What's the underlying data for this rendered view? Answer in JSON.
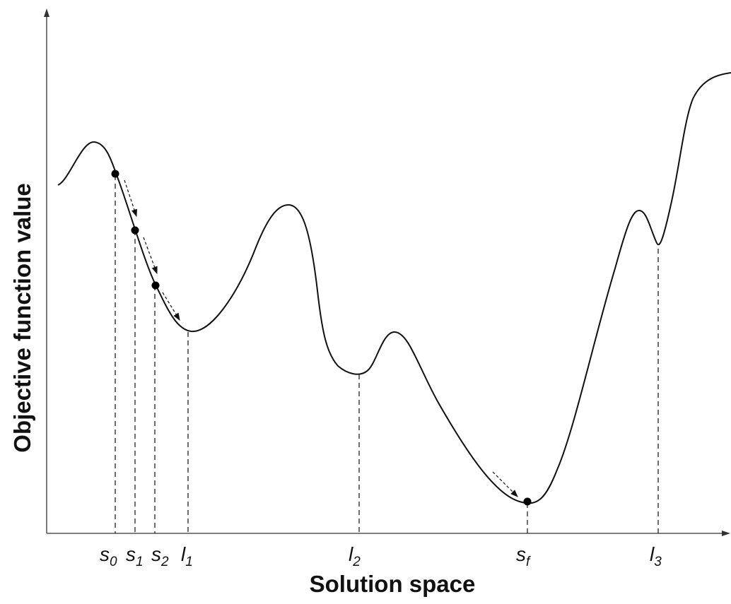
{
  "figure": {
    "y_axis_title": "Objective function value",
    "x_axis_title": "Solution space",
    "points": [
      {
        "id": "s0",
        "base": "s",
        "sub": "0"
      },
      {
        "id": "s1",
        "base": "s",
        "sub": "1"
      },
      {
        "id": "s2",
        "base": "s",
        "sub": "2"
      },
      {
        "id": "l1",
        "base": "l",
        "sub": "1"
      },
      {
        "id": "l2",
        "base": "l",
        "sub": "2"
      },
      {
        "id": "sf",
        "base": "s",
        "sub": "f"
      },
      {
        "id": "l3",
        "base": "l",
        "sub": "3"
      }
    ]
  },
  "colors": {
    "line": "#111111",
    "background": "#ffffff"
  }
}
